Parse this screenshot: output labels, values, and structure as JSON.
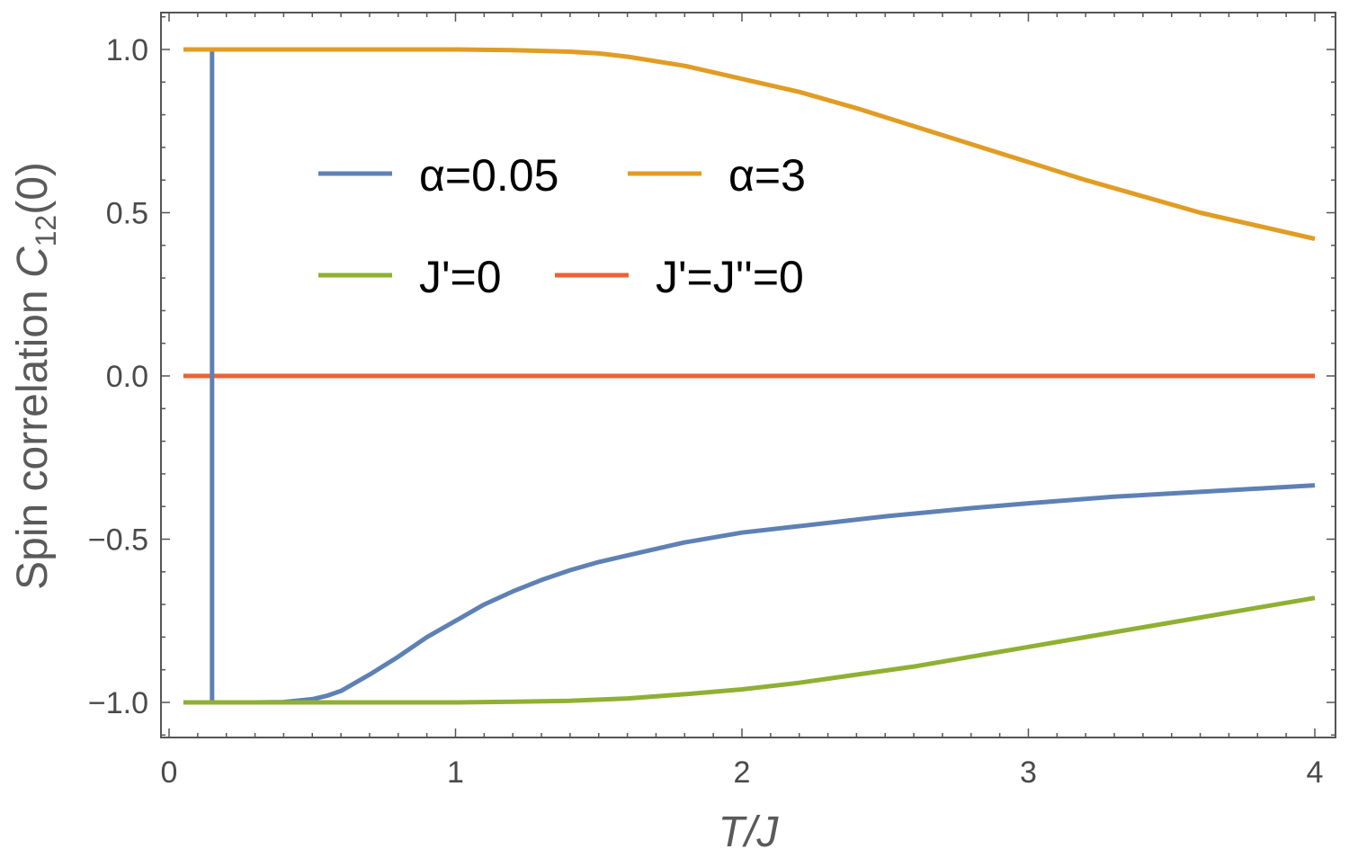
{
  "chart_data": {
    "type": "line",
    "xlabel": "T/J",
    "ylabel": "Spin correlation C12(0)",
    "ylabel_parts": {
      "prefix": "Spin correlation ",
      "symbol": "C",
      "subscript": "12",
      "suffix": "(0)"
    },
    "xlim": [
      0,
      4
    ],
    "ylim": [
      -1.1,
      1.1
    ],
    "x_ticks": [
      0,
      1,
      2,
      3,
      4
    ],
    "x_tick_labels": [
      "0",
      "1",
      "2",
      "3",
      "4"
    ],
    "y_ticks": [
      1.0,
      0.5,
      0.0,
      -0.5,
      -1.0
    ],
    "y_tick_labels": [
      "1.0",
      "0.5",
      "0.0",
      "−0.5",
      "−1.0"
    ],
    "grid": false,
    "legend_position": "upper-left inside",
    "series": [
      {
        "name": "α=0.05",
        "color": "#5e81b5",
        "x": [
          0.15,
          0.15,
          0.3,
          0.4,
          0.5,
          0.55,
          0.6,
          0.7,
          0.8,
          0.9,
          1.0,
          1.1,
          1.2,
          1.3,
          1.4,
          1.5,
          1.6,
          1.8,
          2.0,
          2.2,
          2.5,
          2.8,
          3.0,
          3.3,
          3.6,
          4.0
        ],
        "y": [
          1.0,
          -1.0,
          -1.0,
          -0.999,
          -0.99,
          -0.98,
          -0.965,
          -0.915,
          -0.86,
          -0.8,
          -0.75,
          -0.7,
          -0.66,
          -0.625,
          -0.595,
          -0.57,
          -0.55,
          -0.51,
          -0.48,
          -0.46,
          -0.43,
          -0.405,
          -0.39,
          -0.37,
          -0.355,
          -0.335
        ]
      },
      {
        "name": "α=3",
        "color": "#e19c24",
        "x": [
          0.05,
          0.5,
          1.0,
          1.2,
          1.4,
          1.5,
          1.6,
          1.8,
          2.0,
          2.2,
          2.4,
          2.6,
          2.8,
          3.0,
          3.2,
          3.4,
          3.6,
          3.8,
          4.0
        ],
        "y": [
          1.0,
          1.0,
          1.0,
          0.998,
          0.993,
          0.988,
          0.978,
          0.95,
          0.91,
          0.87,
          0.82,
          0.765,
          0.71,
          0.655,
          0.6,
          0.55,
          0.5,
          0.46,
          0.42
        ]
      },
      {
        "name": "J'=0",
        "color": "#8fb032",
        "x": [
          0.05,
          0.5,
          1.0,
          1.2,
          1.4,
          1.6,
          1.8,
          2.0,
          2.2,
          2.4,
          2.6,
          2.8,
          3.0,
          3.2,
          3.4,
          3.6,
          3.8,
          4.0
        ],
        "y": [
          -1.0,
          -1.0,
          -1.0,
          -0.998,
          -0.995,
          -0.988,
          -0.975,
          -0.96,
          -0.94,
          -0.915,
          -0.89,
          -0.86,
          -0.83,
          -0.8,
          -0.77,
          -0.74,
          -0.71,
          -0.68
        ]
      },
      {
        "name": "J'=J''=0",
        "color": "#eb6235",
        "x": [
          0.05,
          4.0
        ],
        "y": [
          0.0,
          0.0
        ]
      }
    ]
  }
}
